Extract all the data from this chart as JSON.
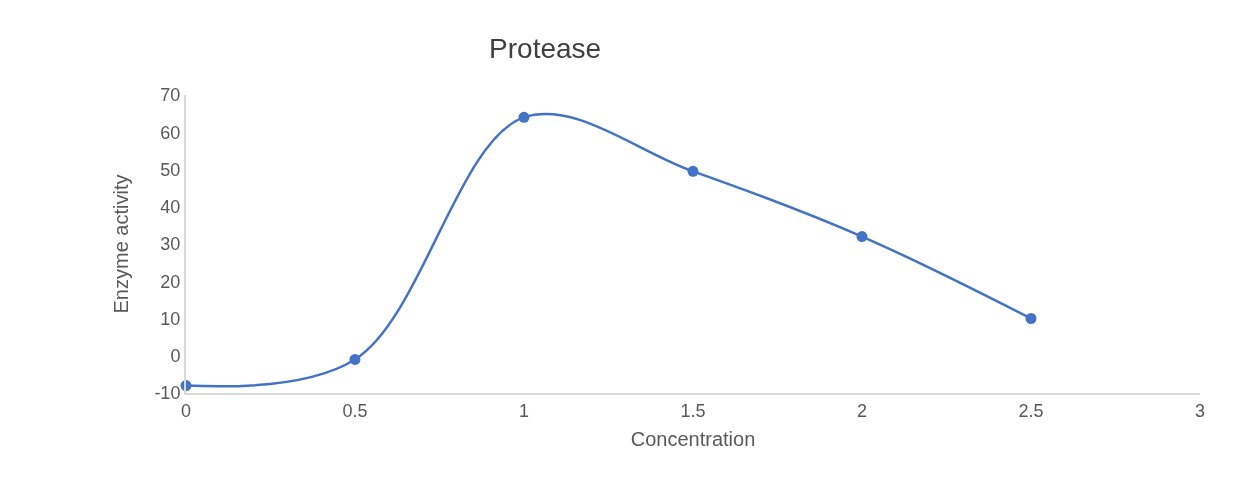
{
  "chart_data": {
    "type": "line",
    "title": "Protease",
    "xlabel": "Concentration",
    "ylabel": "Enzyme activity",
    "x": [
      0,
      0.5,
      1,
      1.5,
      2,
      2.5
    ],
    "series": [
      {
        "color": "#4472c4",
        "values": [
          -8,
          -1,
          64,
          49.5,
          32,
          10
        ]
      }
    ],
    "xlim": [
      0,
      3
    ],
    "xticks": [
      0,
      0.5,
      1,
      1.5,
      2,
      2.5,
      3
    ],
    "ylim": [
      -10,
      70
    ],
    "yticks": [
      -10,
      0,
      10,
      20,
      30,
      40,
      50,
      60,
      70
    ],
    "grid": false,
    "marker": "circle",
    "line_style": "solid"
  }
}
